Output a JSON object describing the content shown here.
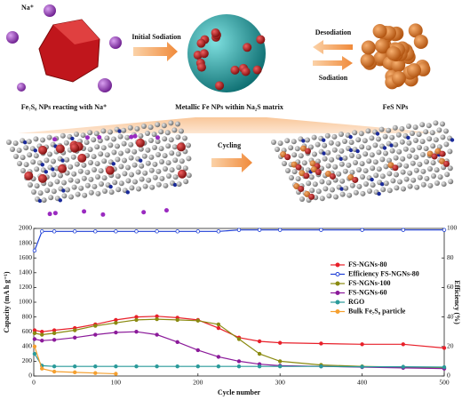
{
  "schematic": {
    "na_label": "Na⁺",
    "fe7s8_caption": "Fe₇S₈ NPs reacting with Na⁺",
    "initial_sodiation": "Initial Sodiation",
    "fe_caption": "Metallic Fe NPs within Na₂S matrix",
    "desodiation": "Desodiation",
    "sodiation": "Sodiation",
    "fes_caption": "FeS NPs",
    "cycling": "Cycling"
  },
  "chart_data": {
    "type": "line",
    "xlabel": "Cycle number",
    "ylabel": "Capacity (mA h g⁻¹)",
    "y2label": "Efficiency (%)",
    "x": [
      1,
      10,
      25,
      50,
      75,
      100,
      125,
      150,
      175,
      200,
      225,
      250,
      275,
      300,
      350,
      400,
      450,
      500
    ],
    "xlim": [
      0,
      500
    ],
    "xticks": [
      0,
      100,
      200,
      300,
      400,
      500
    ],
    "ylim": [
      0,
      2000
    ],
    "yticks": [
      0,
      200,
      400,
      600,
      800,
      1000,
      1200,
      1400,
      1600,
      1800,
      2000
    ],
    "y2lim": [
      0,
      100
    ],
    "y2ticks": [
      0,
      20,
      40,
      60,
      80,
      100
    ],
    "legend": "right",
    "series": [
      {
        "name": "FS-NGNs-80",
        "color": "#e8202a",
        "values": [
          620,
          600,
          620,
          650,
          700,
          760,
          800,
          810,
          790,
          760,
          650,
          520,
          470,
          450,
          440,
          430,
          430,
          380
        ]
      },
      {
        "name": "Efficiency FS-NGNs-80",
        "color": "#1f3fd6",
        "axis": "y2",
        "values": [
          85,
          98,
          98,
          98,
          98,
          98,
          98,
          98,
          98,
          98,
          98,
          99,
          99,
          99,
          99,
          99,
          99,
          99
        ]
      },
      {
        "name": "FS-NGNs-100",
        "color": "#8a8a10",
        "values": [
          580,
          560,
          580,
          620,
          680,
          720,
          760,
          770,
          760,
          750,
          700,
          500,
          300,
          200,
          150,
          130,
          120,
          110
        ]
      },
      {
        "name": "FS-NGNs-60",
        "color": "#8b1a9a",
        "values": [
          500,
          480,
          490,
          520,
          560,
          590,
          600,
          560,
          460,
          350,
          260,
          200,
          160,
          140,
          130,
          120,
          110,
          100
        ]
      },
      {
        "name": "RGO",
        "color": "#2a9a9a",
        "values": [
          300,
          140,
          130,
          130,
          130,
          130,
          130,
          130,
          130,
          130,
          130,
          130,
          130,
          130,
          130,
          125,
          125,
          120
        ]
      },
      {
        "name": "Bulk Fe₇S₈ particle",
        "color": "#f5a030",
        "values": [
          400,
          100,
          60,
          50,
          40,
          30,
          null,
          null,
          null,
          null,
          null,
          null,
          null,
          null,
          null,
          null,
          null,
          null
        ]
      }
    ]
  }
}
